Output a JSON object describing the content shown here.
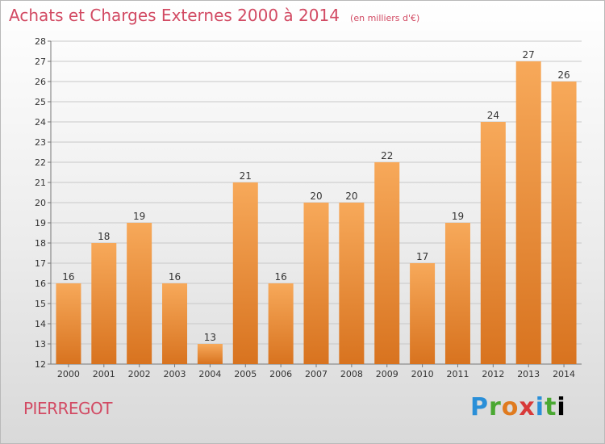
{
  "header": {
    "title": "Achats et Charges Externes 2000 à 2014",
    "unit": "(en milliers d'€)"
  },
  "footer": {
    "location": "PIERREGOT",
    "brand": "Proxiti"
  },
  "colors": {
    "title": "#d24a63",
    "bar_light": "#f7a95a",
    "bar_dark": "#d8731f",
    "grid": "#c8c8c8"
  },
  "chart_data": {
    "type": "bar",
    "categories": [
      "2000",
      "2001",
      "2002",
      "2003",
      "2004",
      "2005",
      "2006",
      "2007",
      "2008",
      "2009",
      "2010",
      "2011",
      "2012",
      "2013",
      "2014"
    ],
    "values": [
      16,
      18,
      19,
      16,
      13,
      21,
      16,
      20,
      20,
      22,
      17,
      19,
      24,
      27,
      26
    ],
    "title": "Achats et Charges Externes 2000 à 2014",
    "subtitle": "(en milliers d'€)",
    "xlabel": "",
    "ylabel": "",
    "ylim": [
      12,
      28
    ],
    "yticks": [
      12,
      13,
      14,
      15,
      16,
      17,
      18,
      19,
      20,
      21,
      22,
      23,
      24,
      25,
      26,
      27,
      28
    ],
    "grid": true,
    "legend": "none"
  }
}
